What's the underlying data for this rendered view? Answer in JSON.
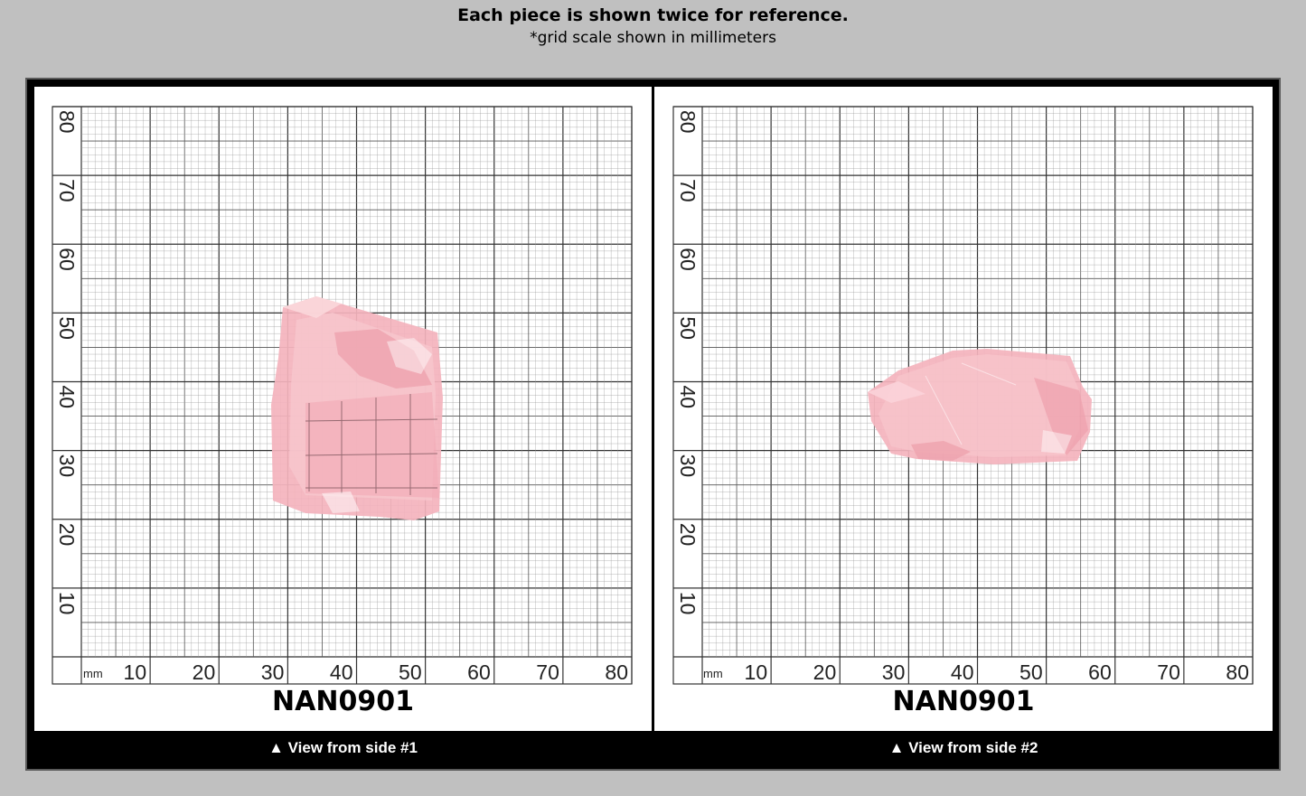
{
  "header": {
    "title": "Each piece is shown twice for reference.",
    "subtitle": "*grid scale shown in millimeters"
  },
  "views": [
    {
      "code": "NAN0901",
      "caption": "▲ View from side #1",
      "x_ticks": [
        "10",
        "20",
        "30",
        "40",
        "50",
        "60",
        "70",
        "80"
      ],
      "y_ticks": [
        "10",
        "20",
        "30",
        "40",
        "50",
        "60",
        "70",
        "80"
      ],
      "unit": "mm"
    },
    {
      "code": "NAN0901",
      "caption": "▲ View from side #2",
      "x_ticks": [
        "10",
        "20",
        "30",
        "40",
        "50",
        "60",
        "70",
        "80"
      ],
      "y_ticks": [
        "10",
        "20",
        "30",
        "40",
        "50",
        "60",
        "70",
        "80"
      ],
      "unit": "mm"
    }
  ],
  "colors": {
    "background": "#c0c0c0",
    "frame": "#000000",
    "gem": "#f2a9b4",
    "grid": "#333333"
  }
}
